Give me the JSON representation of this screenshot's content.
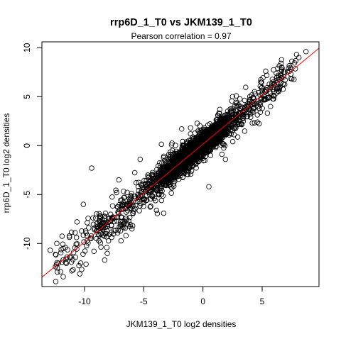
{
  "chart_data": {
    "type": "scatter",
    "title": "rrp6D_1_T0 vs JKM139_1_T0",
    "subtitle": "Pearson correlation =  0.97",
    "xlabel": "JKM139_1_T0 log2 densities",
    "ylabel": "rrp6D_1_T0 log2 densities",
    "xlim": [
      -13.6,
      9.8
    ],
    "ylim": [
      -14.4,
      10.6
    ],
    "xticks": [
      -10,
      -5,
      0,
      5
    ],
    "yticks": [
      -10,
      -5,
      0,
      5,
      10
    ],
    "grid": false,
    "legend": "none",
    "fit_line": {
      "slope": 1.0,
      "intercept": 0.15,
      "color": "#ff0000"
    },
    "point_color": "#000000",
    "highlighted_points": [
      {
        "x": 8.7,
        "y": 9.6
      },
      {
        "x": 8.1,
        "y": 9.0
      },
      {
        "x": 5.3,
        "y": 7.6
      },
      {
        "x": 6.9,
        "y": 7.5
      },
      {
        "x": 7.3,
        "y": 7.6
      },
      {
        "x": 6.4,
        "y": 7.0
      },
      {
        "x": -9.4,
        "y": -2.3
      },
      {
        "x": -5.3,
        "y": -1.4
      },
      {
        "x": 0.5,
        "y": -4.2
      },
      {
        "x": -12.9,
        "y": -10.7
      },
      {
        "x": -11.8,
        "y": -10.5
      },
      {
        "x": -12.3,
        "y": -12.5
      },
      {
        "x": -10.4,
        "y": -13.1
      },
      {
        "x": -11.8,
        "y": -13.4
      },
      {
        "x": -8.3,
        "y": -11.7
      },
      {
        "x": -10.1,
        "y": -6.0
      },
      {
        "x": -6.0,
        "y": -8.5
      },
      {
        "x": -7.1,
        "y": -3.5
      }
    ],
    "sample_points": [
      {
        "x": -8.7,
        "y": -8.2
      },
      {
        "x": -7.9,
        "y": -7.4
      },
      {
        "x": -6.8,
        "y": -6.1
      },
      {
        "x": -5.5,
        "y": -5.0
      },
      {
        "x": -4.2,
        "y": -3.8
      },
      {
        "x": -3.1,
        "y": -2.7
      },
      {
        "x": -2.0,
        "y": -1.6
      },
      {
        "x": -1.1,
        "y": -0.8
      },
      {
        "x": 0.0,
        "y": 0.2
      },
      {
        "x": 1.0,
        "y": 1.3
      },
      {
        "x": 2.1,
        "y": 2.2
      },
      {
        "x": 3.0,
        "y": 3.3
      },
      {
        "x": 4.1,
        "y": 4.2
      },
      {
        "x": 5.0,
        "y": 5.3
      },
      {
        "x": 6.0,
        "y": 6.2
      },
      {
        "x": -6.5,
        "y": -9.2
      },
      {
        "x": -7.3,
        "y": -4.8
      },
      {
        "x": -3.5,
        "y": -5.6
      },
      {
        "x": -1.8,
        "y": 1.7
      },
      {
        "x": 1.9,
        "y": -1.4
      },
      {
        "x": 2.5,
        "y": 5.0
      },
      {
        "x": -9.2,
        "y": -10.8
      },
      {
        "x": -10.8,
        "y": -8.9
      },
      {
        "x": 4.6,
        "y": 2.4
      }
    ]
  }
}
